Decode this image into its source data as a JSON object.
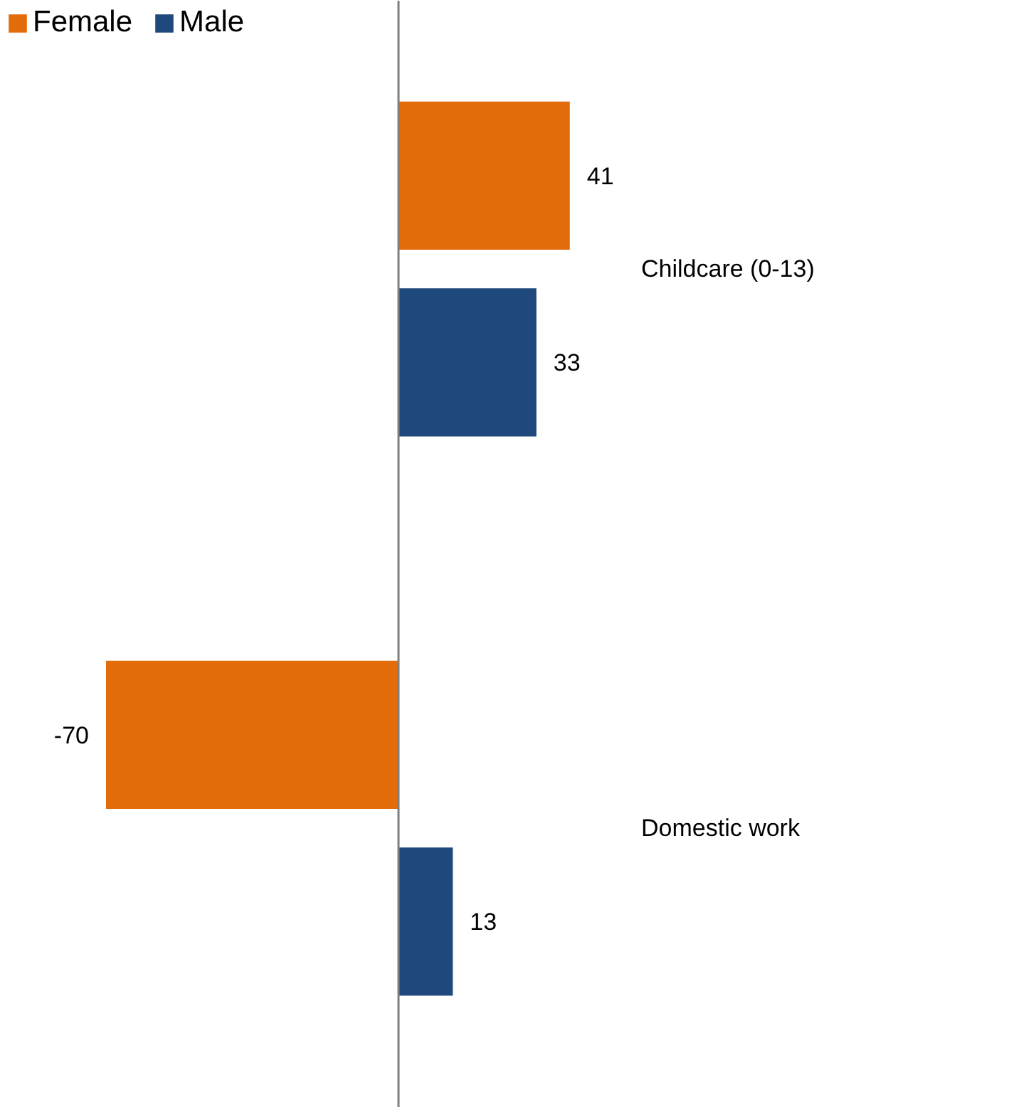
{
  "chart_data": {
    "type": "bar",
    "orientation": "horizontal",
    "categories": [
      "Childcare (0-13)",
      "Domestic work"
    ],
    "series": [
      {
        "name": "Female",
        "color": "#e36c0a",
        "values": [
          41,
          -70
        ]
      },
      {
        "name": "Male",
        "color": "#1f497d",
        "values": [
          33,
          13
        ]
      }
    ],
    "data_labels": true,
    "legend": "top left",
    "grid": false
  }
}
